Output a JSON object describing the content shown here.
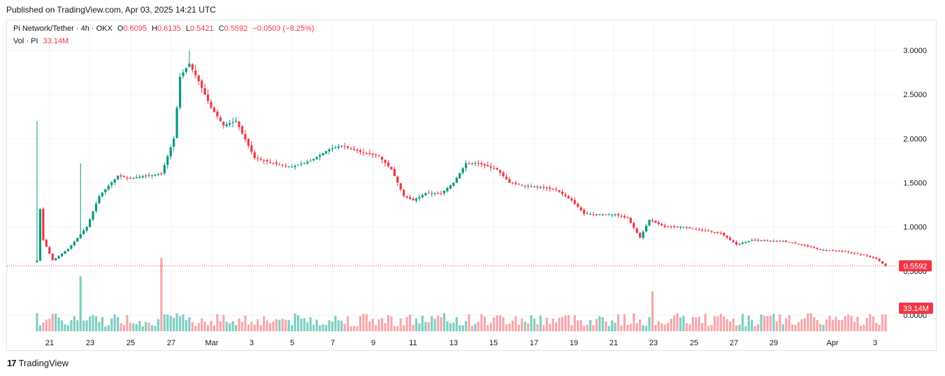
{
  "header": {
    "published": "Published on TradingView.com, Apr 03, 2025 14:21 UTC"
  },
  "legend": {
    "symbol": "Pi Network/Tether · 4h · OKX",
    "o_label": "O",
    "o_value": "0.6095",
    "h_label": "H",
    "h_value": "0.6135",
    "l_label": "L",
    "l_value": "0.5421",
    "c_label": "C",
    "c_value": "0.5592",
    "change": "−0.0503 (−8.25%)",
    "vol_label": "Vol · PI",
    "vol_value": "33.14M"
  },
  "footer": {
    "brand": "TradingView",
    "logo_text": "17"
  },
  "colors": {
    "up": "#089981",
    "down": "#f23645",
    "vol_up": "#7fcec2",
    "vol_down": "#f7a7ac",
    "grid": "#f0f3fa",
    "price_badge": "#f23645"
  },
  "chart_data": {
    "type": "candlestick",
    "timeframe": "4h",
    "ylim": [
      0,
      3.0
    ],
    "y_ticks": [
      "3.0000",
      "2.5000",
      "2.0000",
      "1.5000",
      "1.0000",
      "0.5000",
      "0.0000"
    ],
    "x_ticks": [
      "21",
      "23",
      "25",
      "27",
      "Mar",
      "3",
      "5",
      "7",
      "9",
      "11",
      "13",
      "15",
      "17",
      "19",
      "21",
      "23",
      "25",
      "27",
      "29",
      "Apr",
      "3"
    ],
    "last_price_label": "0.5592",
    "last_volume_label": "33.14M",
    "anchors": [
      [
        0,
        0.62
      ],
      [
        1,
        1.2
      ],
      [
        2,
        0.85
      ],
      [
        5,
        0.62
      ],
      [
        10,
        0.75
      ],
      [
        16,
        1.0
      ],
      [
        20,
        1.35
      ],
      [
        26,
        1.58
      ],
      [
        30,
        1.55
      ],
      [
        35,
        1.58
      ],
      [
        40,
        1.6
      ],
      [
        44,
        2.0
      ],
      [
        46,
        2.7
      ],
      [
        49,
        2.85
      ],
      [
        52,
        2.65
      ],
      [
        56,
        2.35
      ],
      [
        60,
        2.15
      ],
      [
        64,
        2.2
      ],
      [
        70,
        1.78
      ],
      [
        76,
        1.72
      ],
      [
        82,
        1.68
      ],
      [
        88,
        1.75
      ],
      [
        94,
        1.88
      ],
      [
        98,
        1.92
      ],
      [
        104,
        1.85
      ],
      [
        110,
        1.8
      ],
      [
        114,
        1.65
      ],
      [
        118,
        1.35
      ],
      [
        121,
        1.3
      ],
      [
        125,
        1.38
      ],
      [
        130,
        1.38
      ],
      [
        134,
        1.5
      ],
      [
        138,
        1.72
      ],
      [
        142,
        1.72
      ],
      [
        148,
        1.65
      ],
      [
        152,
        1.5
      ],
      [
        158,
        1.46
      ],
      [
        162,
        1.45
      ],
      [
        167,
        1.42
      ],
      [
        172,
        1.3
      ],
      [
        176,
        1.15
      ],
      [
        180,
        1.14
      ],
      [
        186,
        1.14
      ],
      [
        190,
        1.1
      ],
      [
        194,
        0.88
      ],
      [
        197,
        1.08
      ],
      [
        202,
        1.0
      ],
      [
        208,
        1.0
      ],
      [
        214,
        0.96
      ],
      [
        220,
        0.93
      ],
      [
        225,
        0.8
      ],
      [
        230,
        0.85
      ],
      [
        236,
        0.84
      ],
      [
        240,
        0.84
      ],
      [
        246,
        0.8
      ],
      [
        252,
        0.74
      ],
      [
        260,
        0.72
      ],
      [
        266,
        0.68
      ],
      [
        270,
        0.64
      ],
      [
        273,
        0.5592
      ]
    ],
    "wick_spikes": [
      {
        "index": 0,
        "high": 2.2
      },
      {
        "index": 14,
        "high": 1.72
      },
      {
        "index": 49,
        "high": 3.0
      }
    ],
    "volume_spikes": [
      {
        "index": 14,
        "volume": 90
      },
      {
        "index": 40,
        "volume": 120
      },
      {
        "index": 198,
        "volume": 65
      }
    ],
    "volume_ylim": [
      0,
      160
    ]
  }
}
